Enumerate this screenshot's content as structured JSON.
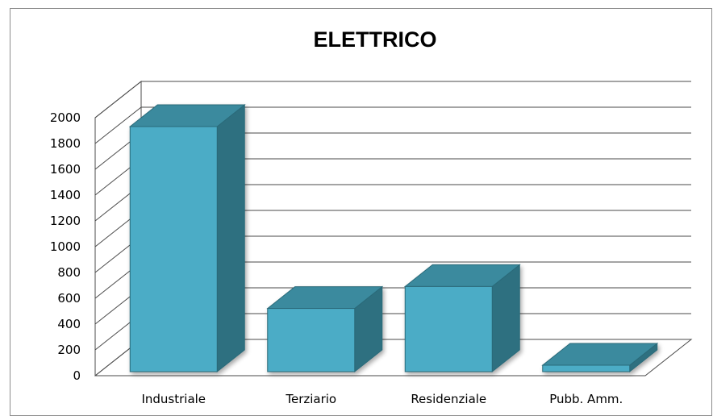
{
  "chart_data": {
    "type": "bar",
    "title": "ELETTRICO",
    "xlabel": "",
    "ylabel": "",
    "categories": [
      "Industriale",
      "Terziario",
      "Residenziale",
      "Pubb. Amm."
    ],
    "values": [
      1900,
      490,
      660,
      50
    ],
    "ylim": [
      0,
      2000
    ],
    "yticks": [
      0,
      200,
      400,
      600,
      800,
      1000,
      1200,
      1400,
      1600,
      1800,
      2000
    ],
    "grid": true,
    "legend": "none",
    "style": "3d-column"
  },
  "colors": {
    "bar_front": "#4bacc6",
    "bar_top": "#3a8a9e",
    "bar_side": "#2f7080",
    "bar_edge": "#2b6a79",
    "grid": "#4a4a4a",
    "frame": "#8c8c8c"
  }
}
